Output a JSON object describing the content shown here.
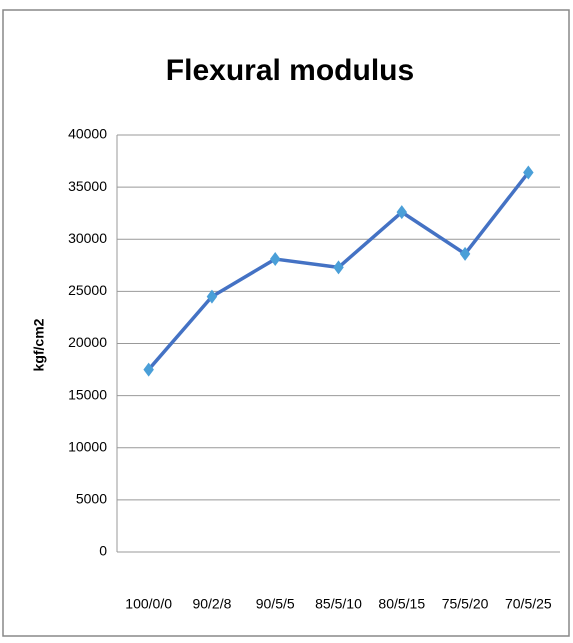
{
  "chart_data": {
    "type": "line",
    "title": "Flexural modulus",
    "y_label": "kgf/cm2",
    "categories": [
      "100/0/0",
      "90/2/8",
      "90/5/5",
      "85/5/10",
      "80/5/15",
      "75/5/20",
      "70/5/25"
    ],
    "series": [
      {
        "name": "Flexural modulus",
        "color": "#4472c4",
        "marker_color": "#4a9fd8",
        "values": [
          17500,
          24500,
          28100,
          27300,
          32600,
          28600,
          36400
        ]
      }
    ],
    "ylim": [
      0,
      40000
    ],
    "yticks": [
      0,
      5000,
      10000,
      15000,
      20000,
      25000,
      30000,
      35000,
      40000
    ],
    "grid": true,
    "legend": false
  }
}
